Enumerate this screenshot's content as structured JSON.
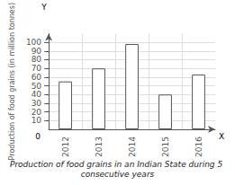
{
  "chart_data": {
    "type": "bar",
    "title": "Production of food grains in an Indian State during 5 consecutive years",
    "ylabel": "Production of food grains (in million tonnes)",
    "categories": [
      "2012",
      "2013",
      "2014",
      "2015",
      "2016"
    ],
    "values": [
      55,
      70,
      98,
      40,
      63
    ],
    "color": "#ffffff",
    "ylim": [
      0,
      110
    ],
    "yticks": [
      10,
      20,
      30,
      40,
      50,
      60,
      70,
      80,
      90,
      100
    ],
    "grid": true,
    "annotations": [
      "0",
      "Y",
      "X"
    ]
  }
}
